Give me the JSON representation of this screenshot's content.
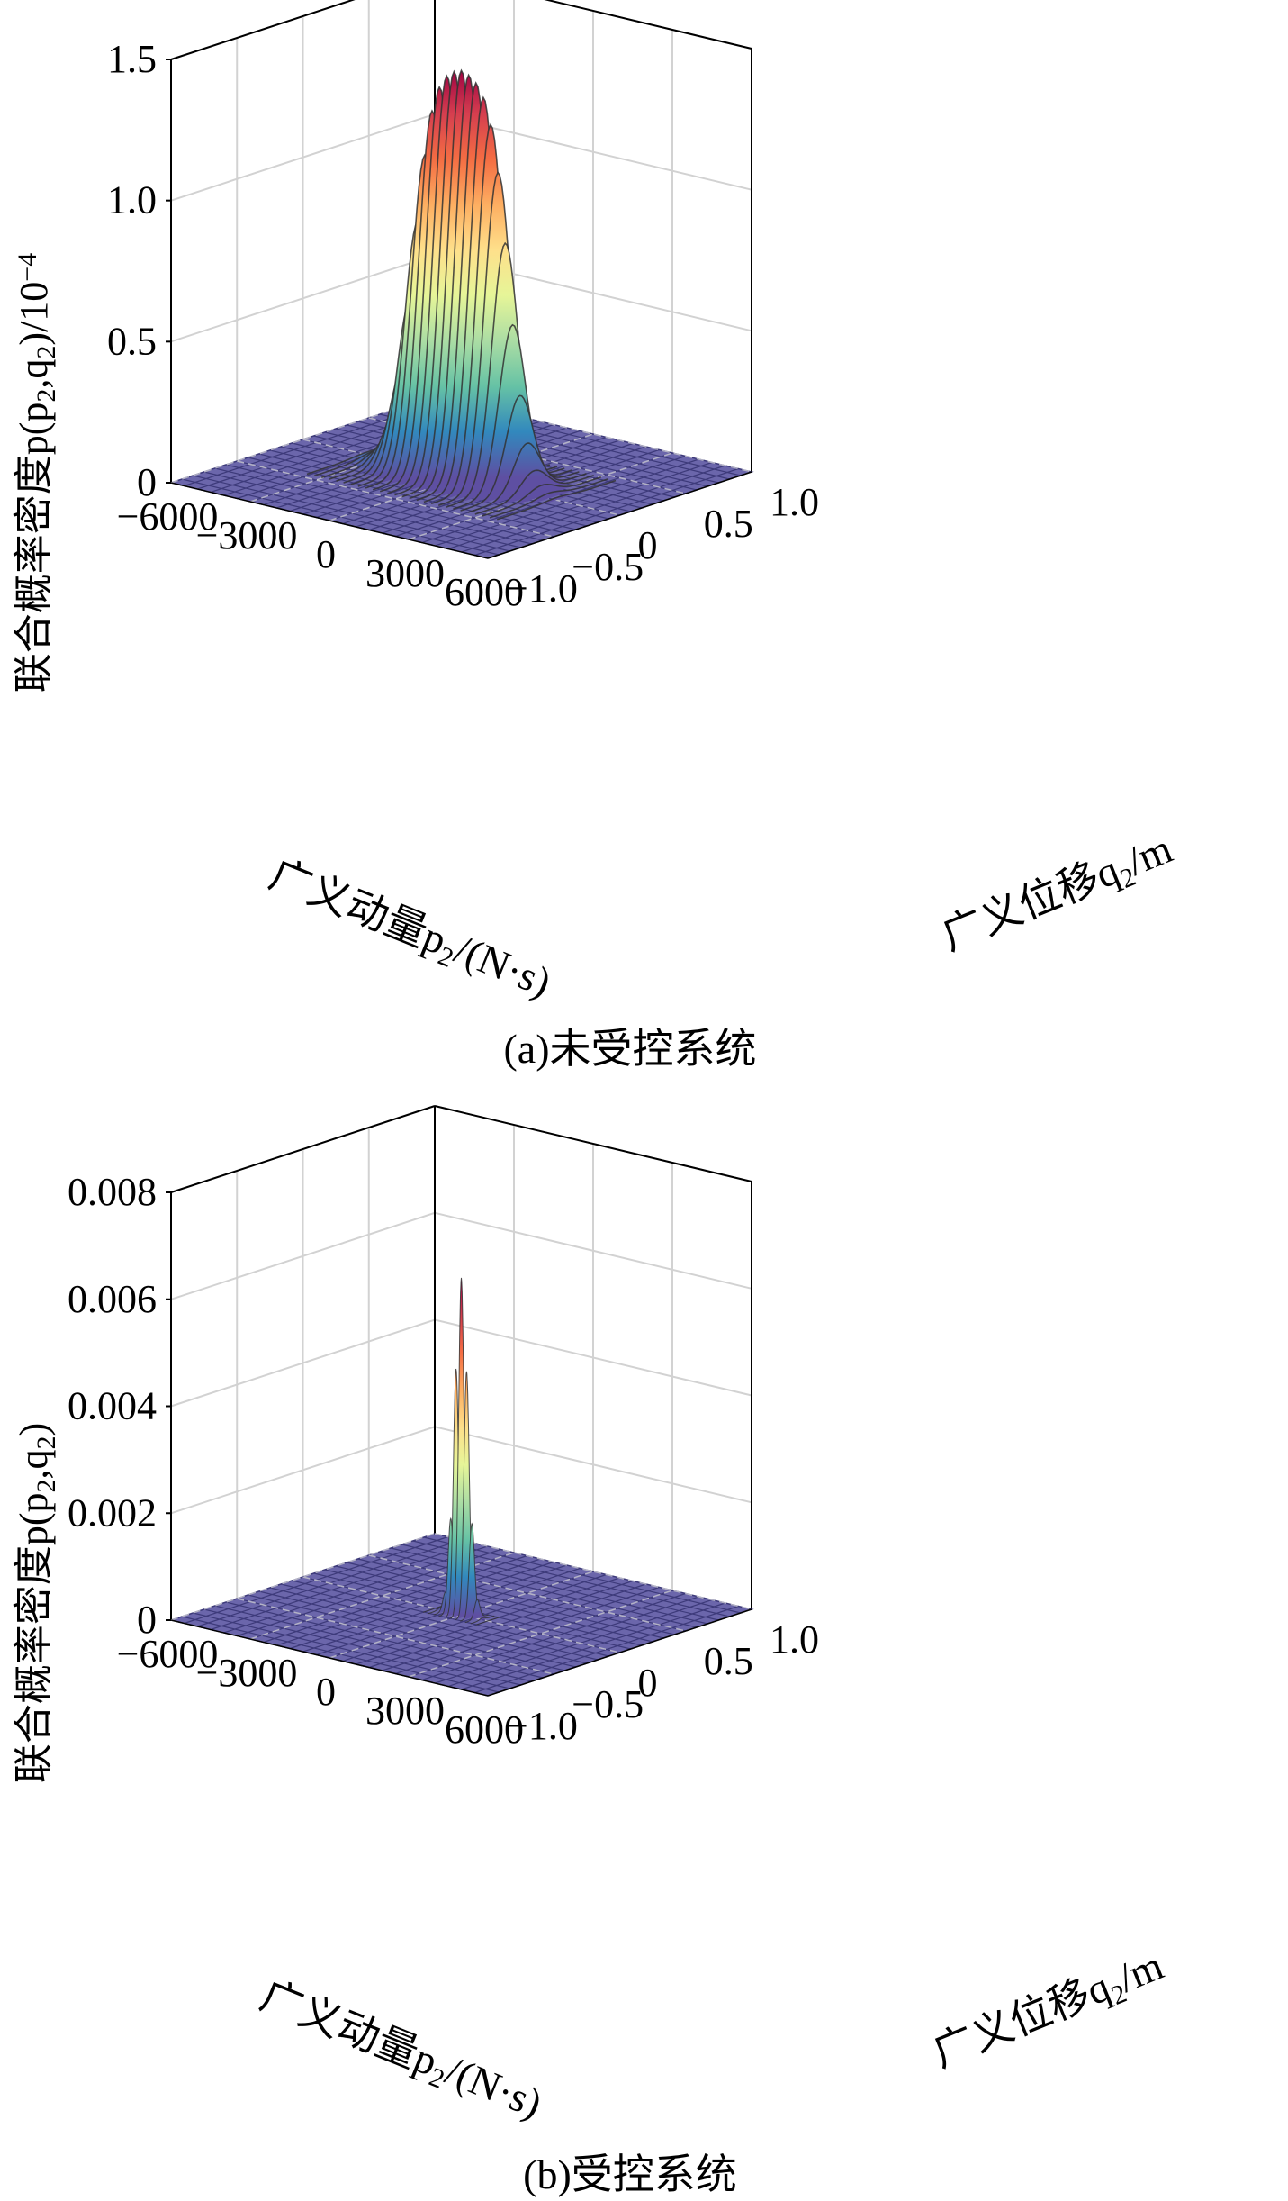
{
  "palette": {
    "floor_fill": "#6b66ab",
    "floor_line": "#3d3a7a",
    "box_line": "#000000",
    "grid_line": "#d2d2d2",
    "floor_grid": "#e6e6e6",
    "surface_line": "#333333",
    "spectral": [
      "#5e4fa2",
      "#3288bd",
      "#66c2a5",
      "#abdda4",
      "#e6f598",
      "#fee08b",
      "#fdae61",
      "#f46d43",
      "#d53e4f",
      "#9e0142"
    ]
  },
  "chart_data": [
    {
      "type": "surface3d",
      "panel": "a",
      "caption": "(a)未受控系统",
      "zlabel_main": "联合概率密度p(p",
      "zlabel_sub1": "2",
      "zlabel_mid": ",q",
      "zlabel_sub2": "2",
      "zlabel_end": ")/10",
      "zlabel_exp": "−4",
      "xlabel_main": "广义动量p",
      "xlabel_sub": "2",
      "xlabel_end": "/(N·s)",
      "ylabel_main": "广义位移q",
      "ylabel_sub": "2",
      "ylabel_end": "/m",
      "x_ticks": [
        "−6000",
        "−3000",
        "0",
        "3000",
        "6000"
      ],
      "x_tick_values": [
        -6000,
        -3000,
        0,
        3000,
        6000
      ],
      "y_ticks": [
        "−1.0",
        "−0.5",
        "0",
        "0.5",
        "1.0"
      ],
      "y_tick_values": [
        -1.0,
        -0.5,
        0,
        0.5,
        1.0
      ],
      "z_ticks": [
        "0",
        "0.5",
        "1.0",
        "1.5"
      ],
      "z_tick_values": [
        0,
        0.5,
        1.0,
        1.5
      ],
      "xlim": [
        -6000,
        6000
      ],
      "ylim": [
        -1.0,
        1.0
      ],
      "zlim": [
        0,
        1.5
      ],
      "peak": {
        "x_center": 0,
        "y_center": 0,
        "x_half_width": 1800,
        "y_sigma": 0.1,
        "height": 1.45,
        "shape": "flat-top ridge along momentum"
      }
    },
    {
      "type": "surface3d",
      "panel": "b",
      "caption": "(b)受控系统",
      "zlabel_main": "联合概率密度p(p",
      "zlabel_sub1": "2",
      "zlabel_mid": ",q",
      "zlabel_sub2": "2",
      "zlabel_end": ")",
      "zlabel_exp": "",
      "xlabel_main": "广义动量p",
      "xlabel_sub": "2",
      "xlabel_end": "/(N·s)",
      "ylabel_main": "广义位移q",
      "ylabel_sub": "2",
      "ylabel_end": "/m",
      "x_ticks": [
        "−6000",
        "−3000",
        "0",
        "3000",
        "6000"
      ],
      "x_tick_values": [
        -6000,
        -3000,
        0,
        3000,
        6000
      ],
      "y_ticks": [
        "−1.0",
        "−0.5",
        "0",
        "0.5",
        "1.0"
      ],
      "y_tick_values": [
        -1.0,
        -0.5,
        0,
        0.5,
        1.0
      ],
      "z_ticks": [
        "0",
        "0.002",
        "0.004",
        "0.006",
        "0.008"
      ],
      "z_tick_values": [
        0,
        0.002,
        0.004,
        0.006,
        0.008
      ],
      "xlim": [
        -6000,
        6000
      ],
      "ylim": [
        -1.0,
        1.0
      ],
      "zlim": [
        0,
        0.008
      ],
      "peak": {
        "x_center": 0,
        "y_center": 0,
        "x_sigma": 250,
        "y_sigma": 0.02,
        "height": 0.0063,
        "shape": "narrow spike"
      }
    }
  ]
}
